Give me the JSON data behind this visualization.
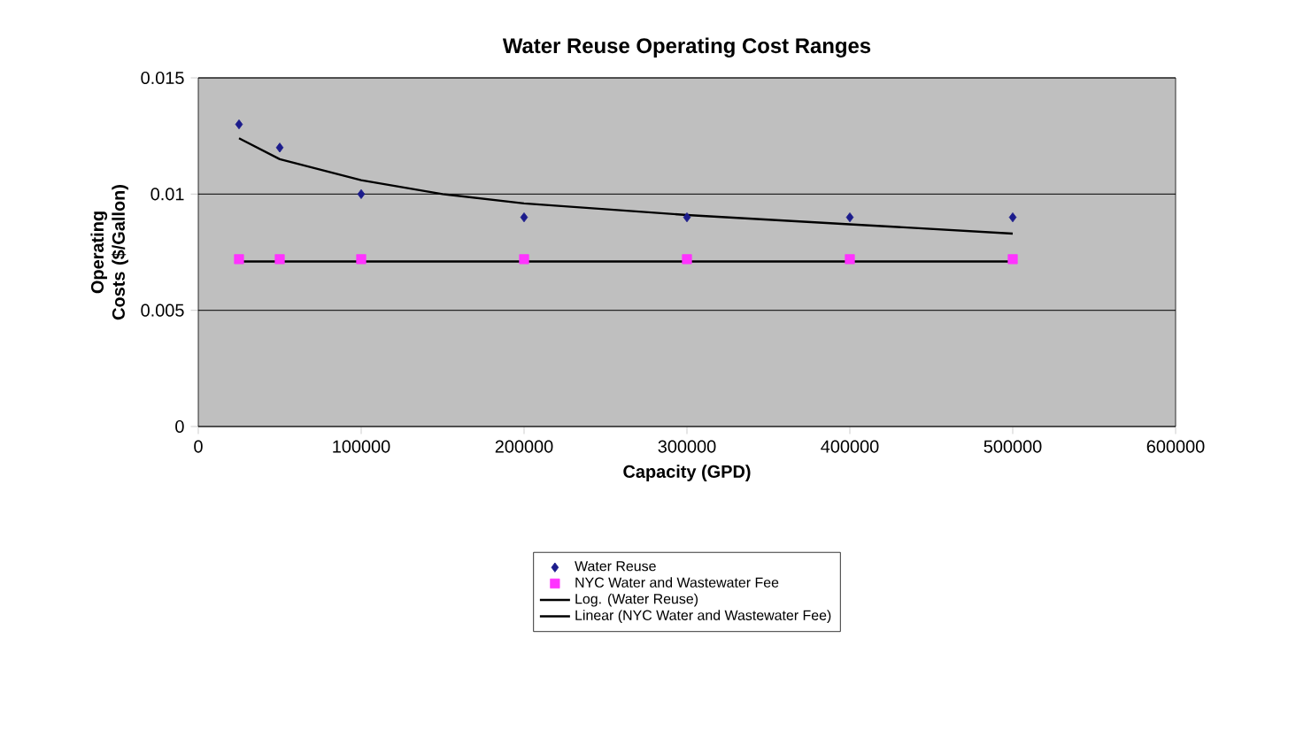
{
  "chart_data": {
    "type": "scatter",
    "title": "Water Reuse Operating Cost Ranges",
    "xlabel": "Capacity (GPD)",
    "ylabel": "Operating Costs ($/Gallon)",
    "xlim": [
      0,
      600000
    ],
    "xticks": [
      0,
      100000,
      200000,
      300000,
      400000,
      500000,
      600000
    ],
    "ylim": [
      0,
      0.015
    ],
    "yticks": [
      0,
      0.005,
      0.01,
      0.015
    ],
    "grid": "y",
    "legend": "bottom",
    "series": [
      {
        "name": "Water Reuse",
        "marker": "diamond",
        "color": "#1c1c8c",
        "x": [
          25000,
          50000,
          100000,
          200000,
          300000,
          400000,
          500000
        ],
        "values": [
          0.013,
          0.012,
          0.01,
          0.009,
          0.009,
          0.009,
          0.009
        ]
      },
      {
        "name": "NYC Water and Wastewater Fee",
        "marker": "square",
        "color": "#ff33ff",
        "x": [
          25000,
          50000,
          100000,
          200000,
          300000,
          400000,
          500000
        ],
        "values": [
          0.0072,
          0.0072,
          0.0072,
          0.0072,
          0.0072,
          0.0072,
          0.0072
        ]
      },
      {
        "name": "Log. (Water Reuse)",
        "type": "line",
        "marker": "none",
        "color": "#000000",
        "x": [
          25000,
          50000,
          100000,
          150000,
          200000,
          300000,
          400000,
          500000
        ],
        "values": [
          0.0124,
          0.0115,
          0.0106,
          0.01,
          0.0096,
          0.0091,
          0.0087,
          0.0083
        ]
      },
      {
        "name": "Linear (NYC Water and Wastewater Fee)",
        "type": "line",
        "marker": "none",
        "color": "#000000",
        "x": [
          25000,
          500000
        ],
        "values": [
          0.0071,
          0.0071
        ]
      }
    ]
  }
}
